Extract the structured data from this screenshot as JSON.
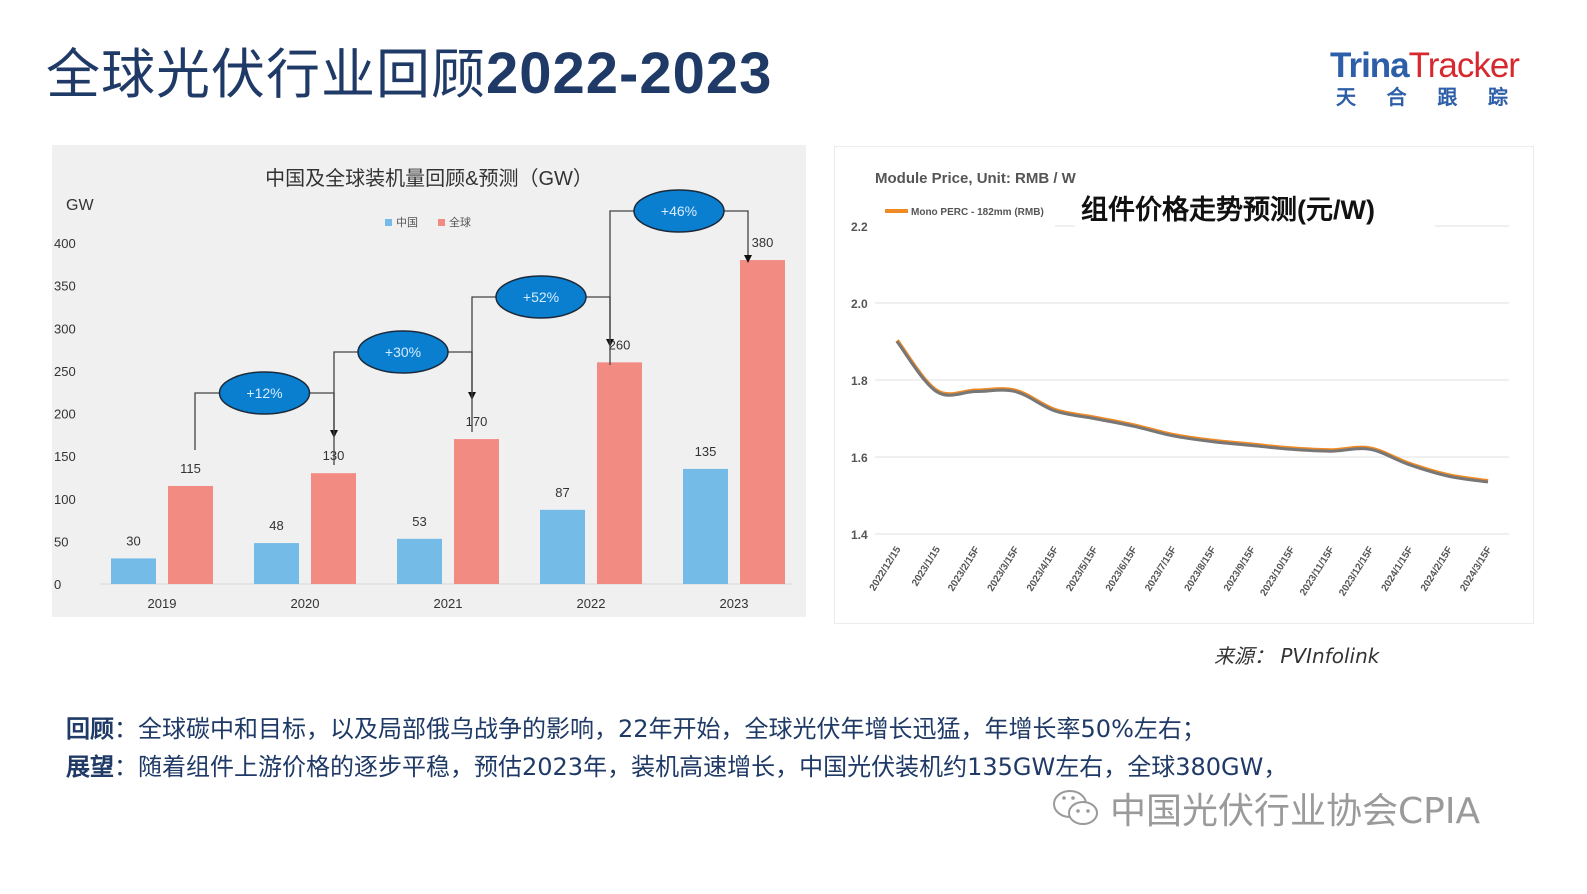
{
  "slide": {
    "title_cn": "全球光伏行业回顾",
    "title_years": "2022-2023",
    "logo": {
      "trina": "Trina",
      "tracker": "Tracker",
      "cn_chars": [
        "天",
        "合",
        "跟",
        "踪"
      ]
    },
    "source": "来源： PVInfolink",
    "notes": [
      {
        "label": "回顾",
        "text": "：全球碳中和目标，以及局部俄乌战争的影响，22年开始，全球光伏年增长迅猛，年增长率50%左右；"
      },
      {
        "label": "展望",
        "text": "：随着组件上游价格的逐步平稳，预估2023年，装机高速增长，中国光伏装机约135GW左右，全球380GW，"
      }
    ],
    "watermark": "中国光伏行业协会CPIA",
    "colors": {
      "title": "#1f3a66",
      "china_bar": "#74bbe8",
      "global_bar": "#f28b82",
      "growth_ellipse": "#0a7fd0",
      "price_line_gray": "#777777",
      "price_line_orange": "#f08a24"
    }
  },
  "chart_data": [
    {
      "type": "bar",
      "title": "中国及全球装机量回顾&预测（GW）",
      "ylabel": "GW",
      "xlabel": "",
      "ylim": [
        0,
        400
      ],
      "yticks": [
        0,
        50,
        100,
        150,
        200,
        250,
        300,
        350,
        400
      ],
      "categories": [
        "2019",
        "2020",
        "2021",
        "2022",
        "2023"
      ],
      "series": [
        {
          "name": "中国",
          "color": "#74bbe8",
          "values": [
            30,
            48,
            53,
            87,
            135
          ]
        },
        {
          "name": "全球",
          "color": "#f28b82",
          "values": [
            115,
            130,
            170,
            260,
            380
          ]
        }
      ],
      "legend_position": "top",
      "grid": false,
      "annotations": [
        {
          "from": "2019",
          "to": "2020",
          "label": "+12%"
        },
        {
          "from": "2020",
          "to": "2021",
          "label": "+30%"
        },
        {
          "from": "2021",
          "to": "2022",
          "label": "+52%"
        },
        {
          "from": "2022",
          "to": "2023",
          "label": "+46%"
        }
      ]
    },
    {
      "type": "line",
      "title": "Module Price, Unit: RMB / W",
      "overlay_title": "组件价格走势预测(元/W)",
      "ylabel": "",
      "xlabel": "",
      "ylim": [
        1.4,
        2.2
      ],
      "yticks": [
        "1.4",
        "1.6",
        "1.8",
        "2.0",
        "2.2"
      ],
      "grid": true,
      "legend_position": "top-left",
      "x": [
        "2022/12/15",
        "2023/1/15",
        "2023/2/15F",
        "2023/3/15F",
        "2023/4/15F",
        "2023/5/15F",
        "2023/6/15F",
        "2023/7/15F",
        "2023/8/15F",
        "2023/9/15F",
        "2023/10/15F",
        "2023/11/15F",
        "2023/12/15F",
        "2024/1/15F",
        "2024/2/15F",
        "2024/3/15F"
      ],
      "series": [
        {
          "name": "Mono PERC - 182mm (RMB)",
          "color": "#f08a24",
          "values": [
            1.9,
            1.77,
            1.77,
            1.77,
            1.72,
            1.7,
            1.68,
            1.655,
            1.64,
            1.63,
            1.62,
            1.615,
            1.62,
            1.58,
            1.55,
            1.535
          ]
        }
      ]
    }
  ]
}
